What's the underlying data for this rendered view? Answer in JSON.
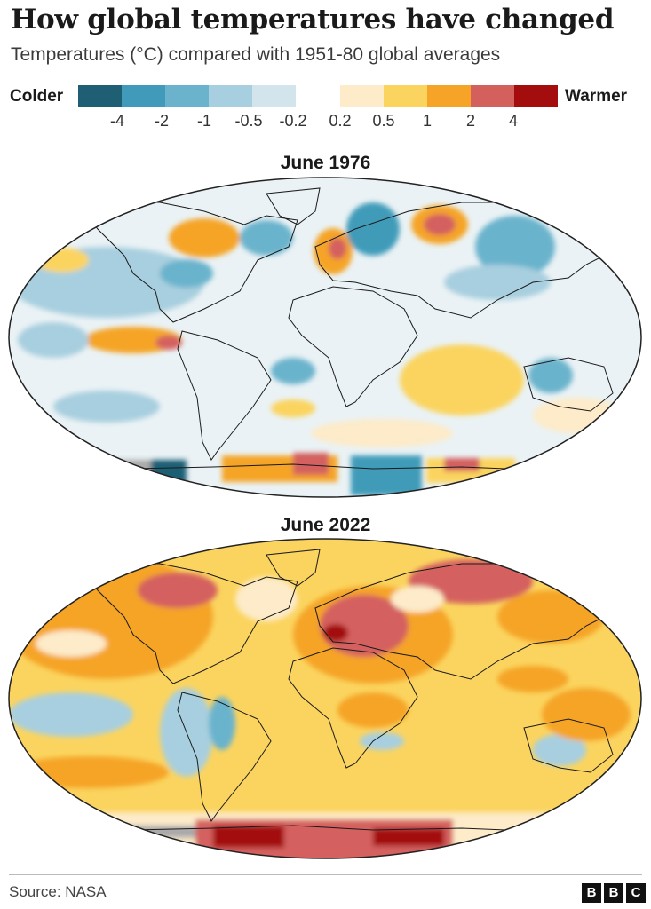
{
  "header": {
    "title": "How global temperatures have changed",
    "subtitle": "Temperatures (°C) compared with 1951-80 global averages"
  },
  "legend": {
    "colder_label": "Colder",
    "warmer_label": "Warmer",
    "cold_swatches": [
      "#1f5f74",
      "#3f9bb9",
      "#6bb3cc",
      "#a8cfdf",
      "#d3e5ec"
    ],
    "warm_swatches": [
      "#fdebc9",
      "#fbd45f",
      "#f5a428",
      "#d4605e",
      "#a30d0d"
    ],
    "cold_ticks": [
      "-4",
      "-2",
      "-1",
      "-0.5",
      "-0.2"
    ],
    "warm_ticks": [
      "0.2",
      "0.5",
      "1",
      "2",
      "4"
    ]
  },
  "maps": [
    {
      "title": "June 1976"
    },
    {
      "title": "June 2022"
    }
  ],
  "footer": {
    "source": "Source: NASA",
    "logo_letters": [
      "B",
      "B",
      "C"
    ]
  }
}
